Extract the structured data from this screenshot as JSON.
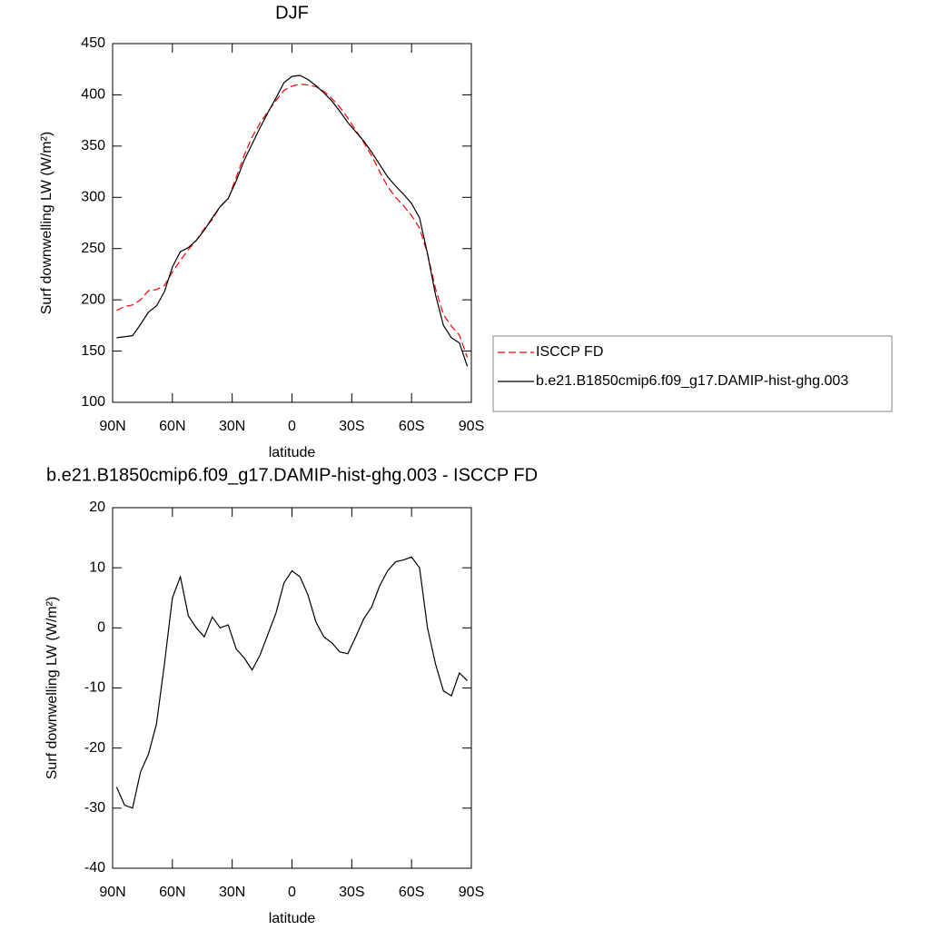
{
  "chart_data": [
    {
      "type": "line",
      "title": "DJF",
      "xlabel": "latitude",
      "ylabel": "Surf downwelling LW (W/m²)",
      "x": [
        88,
        84,
        80,
        76,
        72,
        68,
        64,
        60,
        56,
        52,
        48,
        44,
        40,
        36,
        32,
        28,
        24,
        20,
        16,
        12,
        8,
        4,
        0,
        -4,
        -8,
        -12,
        -16,
        -20,
        -24,
        -28,
        -32,
        -36,
        -40,
        -44,
        -48,
        -52,
        -56,
        -60,
        -64,
        -68,
        -72,
        -76,
        -80,
        -84,
        -88
      ],
      "xlim": [
        90,
        -90
      ],
      "xticks": [
        {
          "value": 90,
          "label": "90N"
        },
        {
          "value": 60,
          "label": "60N"
        },
        {
          "value": 30,
          "label": "30N"
        },
        0,
        {
          "value": -30,
          "label": "30S"
        },
        {
          "value": -60,
          "label": "60S"
        },
        {
          "value": -90,
          "label": "90S"
        }
      ],
      "ylim": [
        100,
        450
      ],
      "yticks": [
        100,
        150,
        200,
        250,
        300,
        350,
        400,
        450
      ],
      "legend": "right",
      "series": [
        {
          "name": "ISCCP FD",
          "color": "#ff0000",
          "dash": "dashed",
          "values": [
            189.5,
            193.5,
            195,
            200,
            209,
            210,
            214,
            227,
            238.5,
            249,
            258,
            269.5,
            278.2,
            291,
            298.5,
            319.5,
            341,
            359,
            372.5,
            384,
            394.5,
            404.5,
            408.5,
            410.5,
            409.5,
            408,
            403.5,
            396.5,
            388,
            377.3,
            365.5,
            353.5,
            340.5,
            325,
            310.5,
            300,
            291.7,
            282.2,
            270,
            245,
            211,
            185.5,
            174.3,
            165.5,
            143.8
          ]
        },
        {
          "name": "b.e21.B1850cmip6.f09_g17.DAMIP-hist-ghg.003",
          "color": "#000000",
          "dash": "solid",
          "values": [
            163,
            164,
            165,
            176,
            188,
            194,
            208,
            232,
            247,
            251,
            258,
            268,
            280,
            291,
            299,
            316,
            336,
            352,
            368,
            383,
            397,
            412,
            418,
            419,
            415,
            409,
            402,
            394,
            384,
            373,
            364,
            355,
            344,
            332,
            320,
            311,
            303,
            294,
            280,
            245,
            205,
            175,
            163,
            158,
            135
          ]
        }
      ]
    },
    {
      "type": "line",
      "title": "b.e21.B1850cmip6.f09_g17.DAMIP-hist-ghg.003 - ISCCP FD",
      "xlabel": "latitude",
      "ylabel": "Surf downwelling LW (W/m²)",
      "x": [
        88,
        84,
        80,
        76,
        72,
        68,
        64,
        60,
        56,
        52,
        48,
        44,
        40,
        36,
        32,
        28,
        24,
        20,
        16,
        12,
        8,
        4,
        0,
        -4,
        -8,
        -12,
        -16,
        -20,
        -24,
        -28,
        -32,
        -36,
        -40,
        -44,
        -48,
        -52,
        -56,
        -60,
        -64,
        -68,
        -72,
        -76,
        -80,
        -84,
        -88
      ],
      "xlim": [
        90,
        -90
      ],
      "xticks": [
        {
          "value": 90,
          "label": "90N"
        },
        {
          "value": 60,
          "label": "60N"
        },
        {
          "value": 30,
          "label": "30N"
        },
        0,
        {
          "value": -30,
          "label": "30S"
        },
        {
          "value": -60,
          "label": "60S"
        },
        {
          "value": -90,
          "label": "90S"
        }
      ],
      "ylim": [
        -40,
        20
      ],
      "yticks": [
        -40,
        -30,
        -20,
        -10,
        0,
        10,
        20
      ],
      "series": [
        {
          "color": "#000000",
          "dash": "solid",
          "values": [
            -26.5,
            -29.5,
            -30,
            -24,
            -21,
            -16,
            -6,
            5,
            8.5,
            2,
            0,
            -1.5,
            1.8,
            0,
            0.5,
            -3.5,
            -5,
            -7,
            -4.5,
            -1,
            2.5,
            7.5,
            9.5,
            8.5,
            5.5,
            1,
            -1.5,
            -2.5,
            -4,
            -4.3,
            -1.5,
            1.5,
            3.5,
            7,
            9.5,
            11,
            11.3,
            11.8,
            10,
            0,
            -6,
            -10.5,
            -11.3,
            -7.5,
            -8.8
          ]
        }
      ]
    }
  ]
}
